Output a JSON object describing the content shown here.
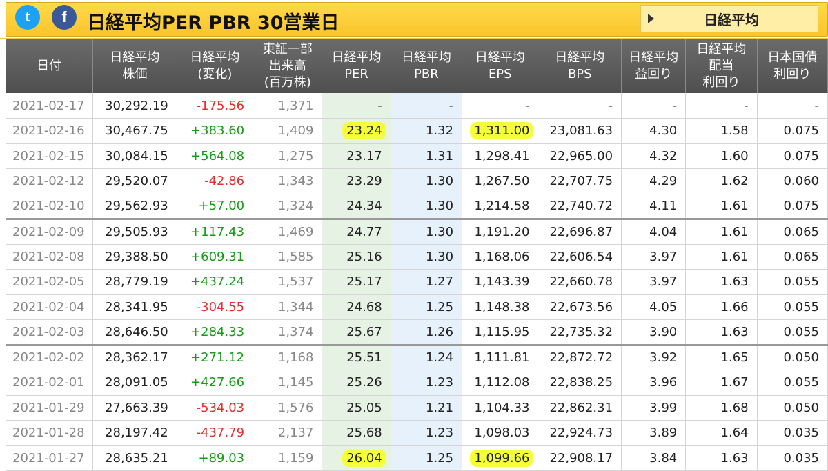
{
  "header": {
    "twitter_icon_glyph": "t",
    "facebook_icon_glyph": "f",
    "title": "日経平均PER PBR 30営業日",
    "nav_button_label": "日経平均"
  },
  "colors": {
    "header_band": "#f9c52b",
    "positive": "#1a9a1a",
    "negative": "#e03030",
    "highlight": "#f5ff3a"
  },
  "columns": [
    "日付",
    "日経平均\n株価",
    "日経平均\n(変化)",
    "東証一部\n出来高\n(百万株)",
    "日経平均\nPER",
    "日経平均\nPBR",
    "日経平均\nEPS",
    "日経平均\nBPS",
    "日経平均\n益回り",
    "日経平均\n配当\n利回り",
    "日本国債\n利回り"
  ],
  "rows": [
    {
      "date": "2021-02-17",
      "price": "30,292.19",
      "change": "-175.56",
      "volume": "1,371",
      "per": "-",
      "pbr": "-",
      "eps": "-",
      "bps": "-",
      "yield": "-",
      "div": "-",
      "jgb": "-"
    },
    {
      "date": "2021-02-16",
      "price": "30,467.75",
      "change": "+383.60",
      "volume": "1,409",
      "per": "23.24",
      "pbr": "1.32",
      "eps": "1,311.00",
      "bps": "23,081.63",
      "yield": "4.30",
      "div": "1.58",
      "jgb": "0.075"
    },
    {
      "date": "2021-02-15",
      "price": "30,084.15",
      "change": "+564.08",
      "volume": "1,275",
      "per": "23.17",
      "pbr": "1.31",
      "eps": "1,298.41",
      "bps": "22,965.00",
      "yield": "4.32",
      "div": "1.60",
      "jgb": "0.075"
    },
    {
      "date": "2021-02-12",
      "price": "29,520.07",
      "change": "-42.86",
      "volume": "1,343",
      "per": "23.29",
      "pbr": "1.30",
      "eps": "1,267.50",
      "bps": "22,707.75",
      "yield": "4.29",
      "div": "1.62",
      "jgb": "0.060"
    },
    {
      "date": "2021-02-10",
      "price": "29,562.93",
      "change": "+57.00",
      "volume": "1,324",
      "per": "24.34",
      "pbr": "1.30",
      "eps": "1,214.58",
      "bps": "22,740.72",
      "yield": "4.11",
      "div": "1.61",
      "jgb": "0.075"
    },
    {
      "date": "2021-02-09",
      "price": "29,505.93",
      "change": "+117.43",
      "volume": "1,469",
      "per": "24.77",
      "pbr": "1.30",
      "eps": "1,191.20",
      "bps": "22,696.87",
      "yield": "4.04",
      "div": "1.61",
      "jgb": "0.065"
    },
    {
      "date": "2021-02-08",
      "price": "29,388.50",
      "change": "+609.31",
      "volume": "1,585",
      "per": "25.16",
      "pbr": "1.30",
      "eps": "1,168.06",
      "bps": "22,606.54",
      "yield": "3.97",
      "div": "1.61",
      "jgb": "0.065"
    },
    {
      "date": "2021-02-05",
      "price": "28,779.19",
      "change": "+437.24",
      "volume": "1,537",
      "per": "25.17",
      "pbr": "1.27",
      "eps": "1,143.39",
      "bps": "22,660.78",
      "yield": "3.97",
      "div": "1.63",
      "jgb": "0.055"
    },
    {
      "date": "2021-02-04",
      "price": "28,341.95",
      "change": "-304.55",
      "volume": "1,344",
      "per": "24.68",
      "pbr": "1.25",
      "eps": "1,148.38",
      "bps": "22,673.56",
      "yield": "4.05",
      "div": "1.66",
      "jgb": "0.055"
    },
    {
      "date": "2021-02-03",
      "price": "28,646.50",
      "change": "+284.33",
      "volume": "1,374",
      "per": "25.67",
      "pbr": "1.26",
      "eps": "1,115.95",
      "bps": "22,735.32",
      "yield": "3.90",
      "div": "1.63",
      "jgb": "0.055"
    },
    {
      "date": "2021-02-02",
      "price": "28,362.17",
      "change": "+271.12",
      "volume": "1,168",
      "per": "25.51",
      "pbr": "1.24",
      "eps": "1,111.81",
      "bps": "22,872.72",
      "yield": "3.92",
      "div": "1.65",
      "jgb": "0.050"
    },
    {
      "date": "2021-02-01",
      "price": "28,091.05",
      "change": "+427.66",
      "volume": "1,145",
      "per": "25.26",
      "pbr": "1.23",
      "eps": "1,112.08",
      "bps": "22,838.25",
      "yield": "3.96",
      "div": "1.67",
      "jgb": "0.055"
    },
    {
      "date": "2021-01-29",
      "price": "27,663.39",
      "change": "-534.03",
      "volume": "1,576",
      "per": "25.05",
      "pbr": "1.21",
      "eps": "1,104.33",
      "bps": "22,862.31",
      "yield": "3.99",
      "div": "1.68",
      "jgb": "0.050"
    },
    {
      "date": "2021-01-28",
      "price": "28,197.42",
      "change": "-437.79",
      "volume": "2,137",
      "per": "25.68",
      "pbr": "1.23",
      "eps": "1,098.03",
      "bps": "22,924.73",
      "yield": "3.89",
      "div": "1.64",
      "jgb": "0.035"
    },
    {
      "date": "2021-01-27",
      "price": "28,635.21",
      "change": "+89.03",
      "volume": "1,159",
      "per": "26.04",
      "pbr": "1.25",
      "eps": "1,099.66",
      "bps": "22,908.17",
      "yield": "3.84",
      "div": "1.63",
      "jgb": "0.035"
    }
  ],
  "highlighted_cells": [
    {
      "row": 1,
      "col": "per"
    },
    {
      "row": 1,
      "col": "eps"
    },
    {
      "row": 14,
      "col": "per"
    },
    {
      "row": 14,
      "col": "eps"
    }
  ],
  "week_separator_after_rows": [
    4,
    9
  ]
}
